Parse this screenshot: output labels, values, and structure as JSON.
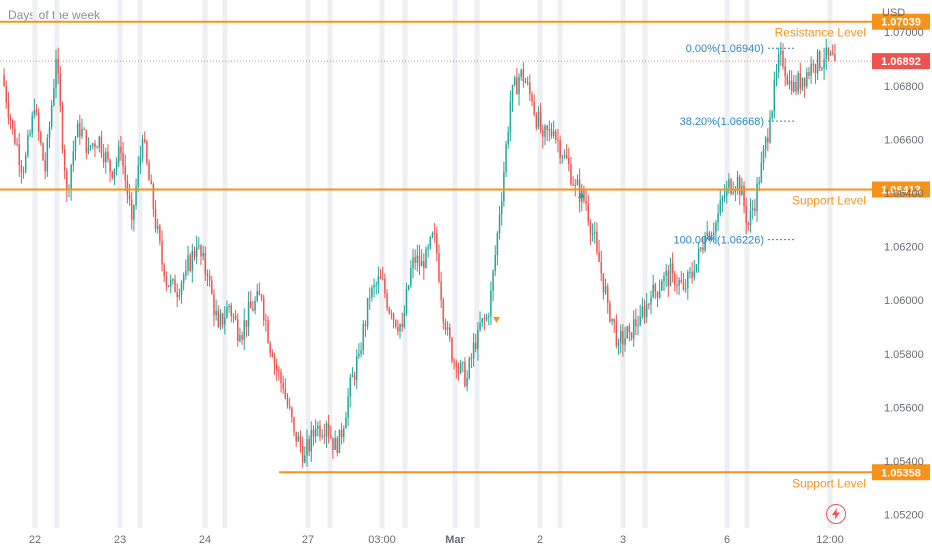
{
  "header": {
    "title": "Days of the week"
  },
  "price_axis": {
    "currency": "USD"
  },
  "current_price_label": "1.06892",
  "levels": [
    {
      "name": "Resistance Level",
      "price": 1.07039,
      "label": "1.07039",
      "color": "#f7931a"
    },
    {
      "name": "Support Level",
      "price": 1.06413,
      "label": "1.06413",
      "color": "#f7931a"
    },
    {
      "name": "Support Level",
      "price": 1.05358,
      "label": "1.05358",
      "color": "#f7931a"
    }
  ],
  "fib": [
    {
      "label": "0.00%(1.06940)",
      "price": 1.0694
    },
    {
      "label": "38.20%(1.06668)",
      "price": 1.06668
    },
    {
      "label": "100.00%(1.06226)",
      "price": 1.06226
    }
  ],
  "colors": {
    "up": "#26a69a",
    "down": "#ef5350",
    "grid": "#eeeff2",
    "level": "#f7931a",
    "fib": "#2e86c1",
    "axis_text": "#6a6d78"
  },
  "chart_data": {
    "type": "candlestick",
    "title": "Days of the week",
    "ylabel": "USD",
    "ylim": [
      1.0515,
      1.0712
    ],
    "y_ticks": [
      "1.07000",
      "1.06800",
      "1.06600",
      "1.06400",
      "1.06200",
      "1.06000",
      "1.05800",
      "1.05600",
      "1.05400",
      "1.05200"
    ],
    "x_ticks": [
      "22",
      "23",
      "24",
      "27",
      "03:00",
      "Mar",
      "2",
      "3",
      "6",
      "12:00"
    ],
    "current_price": 1.06892,
    "series": [
      {
        "path": [
          [
            1.0684,
            1.0664
          ],
          [
            1.0664,
            1.0648
          ],
          [
            1.0648,
            1.0671
          ],
          [
            1.0671,
            1.0648
          ],
          [
            1.0648,
            1.069
          ],
          [
            1.069,
            1.0641
          ],
          [
            1.0641,
            1.0666
          ],
          [
            1.0666,
            1.0657
          ],
          [
            1.0657,
            1.0661
          ],
          [
            1.0661,
            1.0648
          ],
          [
            1.0648,
            1.0655
          ],
          [
            1.0655,
            1.063
          ],
          [
            1.063,
            1.066
          ],
          [
            1.066,
            1.0634
          ],
          [
            1.0634,
            1.0609
          ],
          [
            1.0609,
            1.0603
          ],
          [
            1.0603,
            1.0611
          ],
          [
            1.0611,
            1.062
          ],
          [
            1.062,
            1.0609
          ],
          [
            1.0609,
            1.059
          ],
          [
            1.059,
            1.0598
          ],
          [
            1.0598,
            1.0587
          ],
          [
            1.0587,
            1.0597
          ],
          [
            1.0597,
            1.0601
          ],
          [
            1.0601,
            1.0579
          ],
          [
            1.0579,
            1.0567
          ],
          [
            1.0567,
            1.0551
          ],
          [
            1.0551,
            1.0542
          ],
          [
            1.0542,
            1.0552
          ],
          [
            1.0552,
            1.0554
          ],
          [
            1.0554,
            1.0543
          ],
          [
            1.0543,
            1.0564
          ],
          [
            1.0564,
            1.058
          ],
          [
            1.058,
            1.0601
          ],
          [
            1.0601,
            1.0608
          ],
          [
            1.0608,
            1.0595
          ],
          [
            1.0595,
            1.059
          ],
          [
            1.059,
            1.0616
          ],
          [
            1.0616,
            1.0612
          ],
          [
            1.0612,
            1.0625
          ],
          [
            1.0625,
            1.0589
          ],
          [
            1.0589,
            1.0575
          ],
          [
            1.0575,
            1.0571
          ],
          [
            1.0571,
            1.0589
          ],
          [
            1.0589,
            1.0594
          ],
          [
            1.0594,
            1.0632
          ],
          [
            1.0632,
            1.0674
          ],
          [
            1.0674,
            1.0686
          ],
          [
            1.0686,
            1.0674
          ],
          [
            1.0674,
            1.0661
          ],
          [
            1.0661,
            1.0663
          ],
          [
            1.0663,
            1.0654
          ],
          [
            1.0654,
            1.0643
          ],
          [
            1.0643,
            1.0636
          ],
          [
            1.0636,
            1.0618
          ],
          [
            1.0618,
            1.0599
          ],
          [
            1.0599,
            1.0584
          ],
          [
            1.0584,
            1.0588
          ],
          [
            1.0588,
            1.0594
          ],
          [
            1.0594,
            1.0601
          ],
          [
            1.0601,
            1.0607
          ],
          [
            1.0607,
            1.061
          ],
          [
            1.061,
            1.0604
          ],
          [
            1.0604,
            1.0611
          ],
          [
            1.0611,
            1.0624
          ],
          [
            1.0624,
            1.0629
          ],
          [
            1.0629,
            1.0642
          ],
          [
            1.0642,
            1.0646
          ],
          [
            1.0646,
            1.0628
          ],
          [
            1.0628,
            1.0644
          ],
          [
            1.0644,
            1.0668
          ],
          [
            1.0668,
            1.0693
          ],
          [
            1.0693,
            1.0678
          ],
          [
            1.0678,
            1.0683
          ],
          [
            1.0683,
            1.0688
          ],
          [
            1.0688,
            1.069
          ],
          [
            1.069,
            1.06892
          ]
        ]
      }
    ]
  }
}
